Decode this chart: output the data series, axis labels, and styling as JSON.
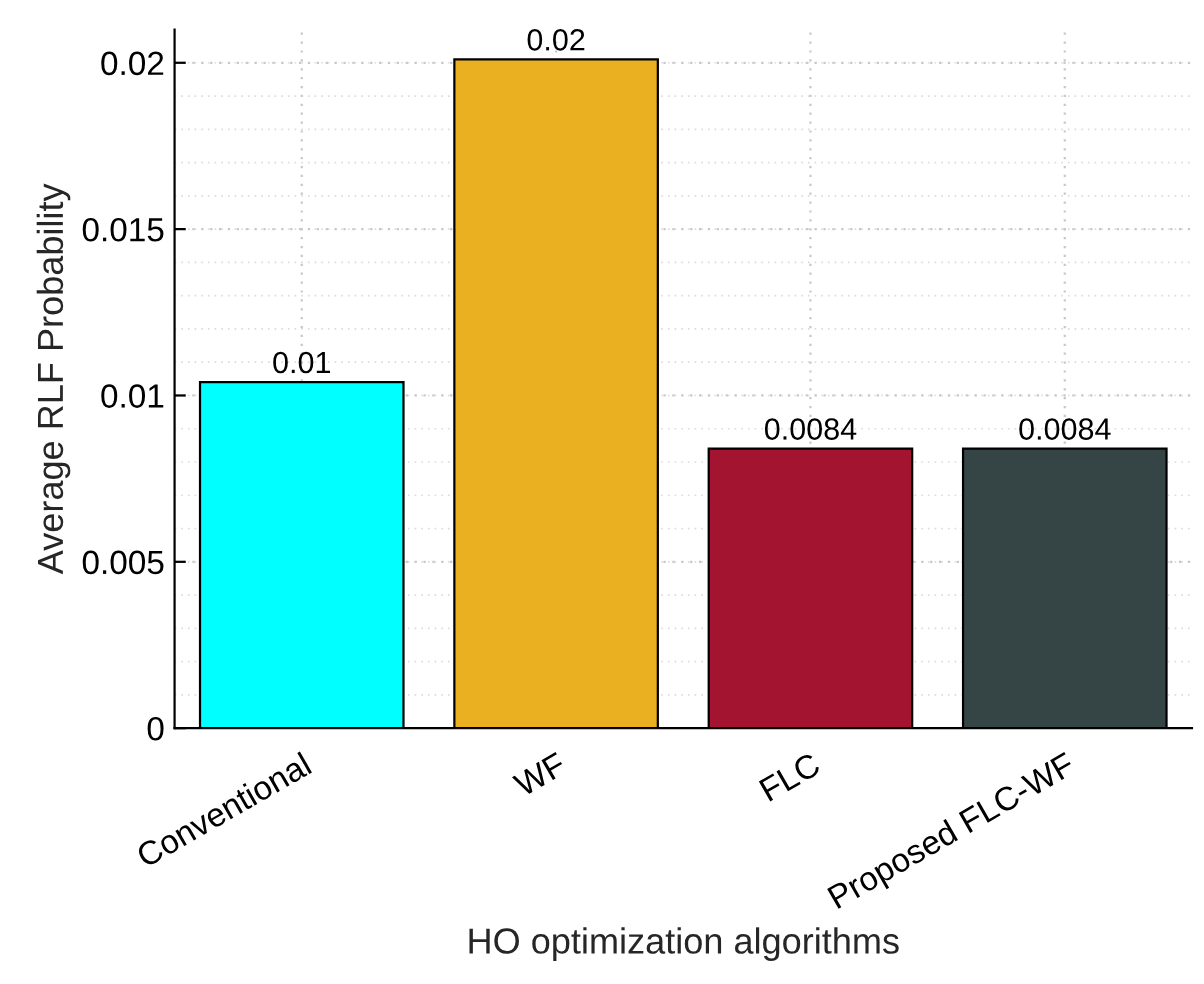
{
  "chart_data": {
    "type": "bar",
    "xlabel": "HO optimization algorithms",
    "ylabel": "Average RLF Probability",
    "categories": [
      "Conventional",
      "WF",
      "FLC",
      "Proposed FLC-WF"
    ],
    "values": [
      0.0104,
      0.0201,
      0.0084,
      0.0084
    ],
    "colors": [
      "#00ffff",
      "#ebb021",
      "#a21430",
      "#354546"
    ],
    "value_labels": [
      "0.01",
      "0.02",
      "0.0084",
      "0.0084"
    ],
    "ylim": [
      0,
      0.021
    ],
    "yticks": [
      0,
      0.005,
      0.01,
      0.015,
      0.02
    ],
    "grid": true
  }
}
